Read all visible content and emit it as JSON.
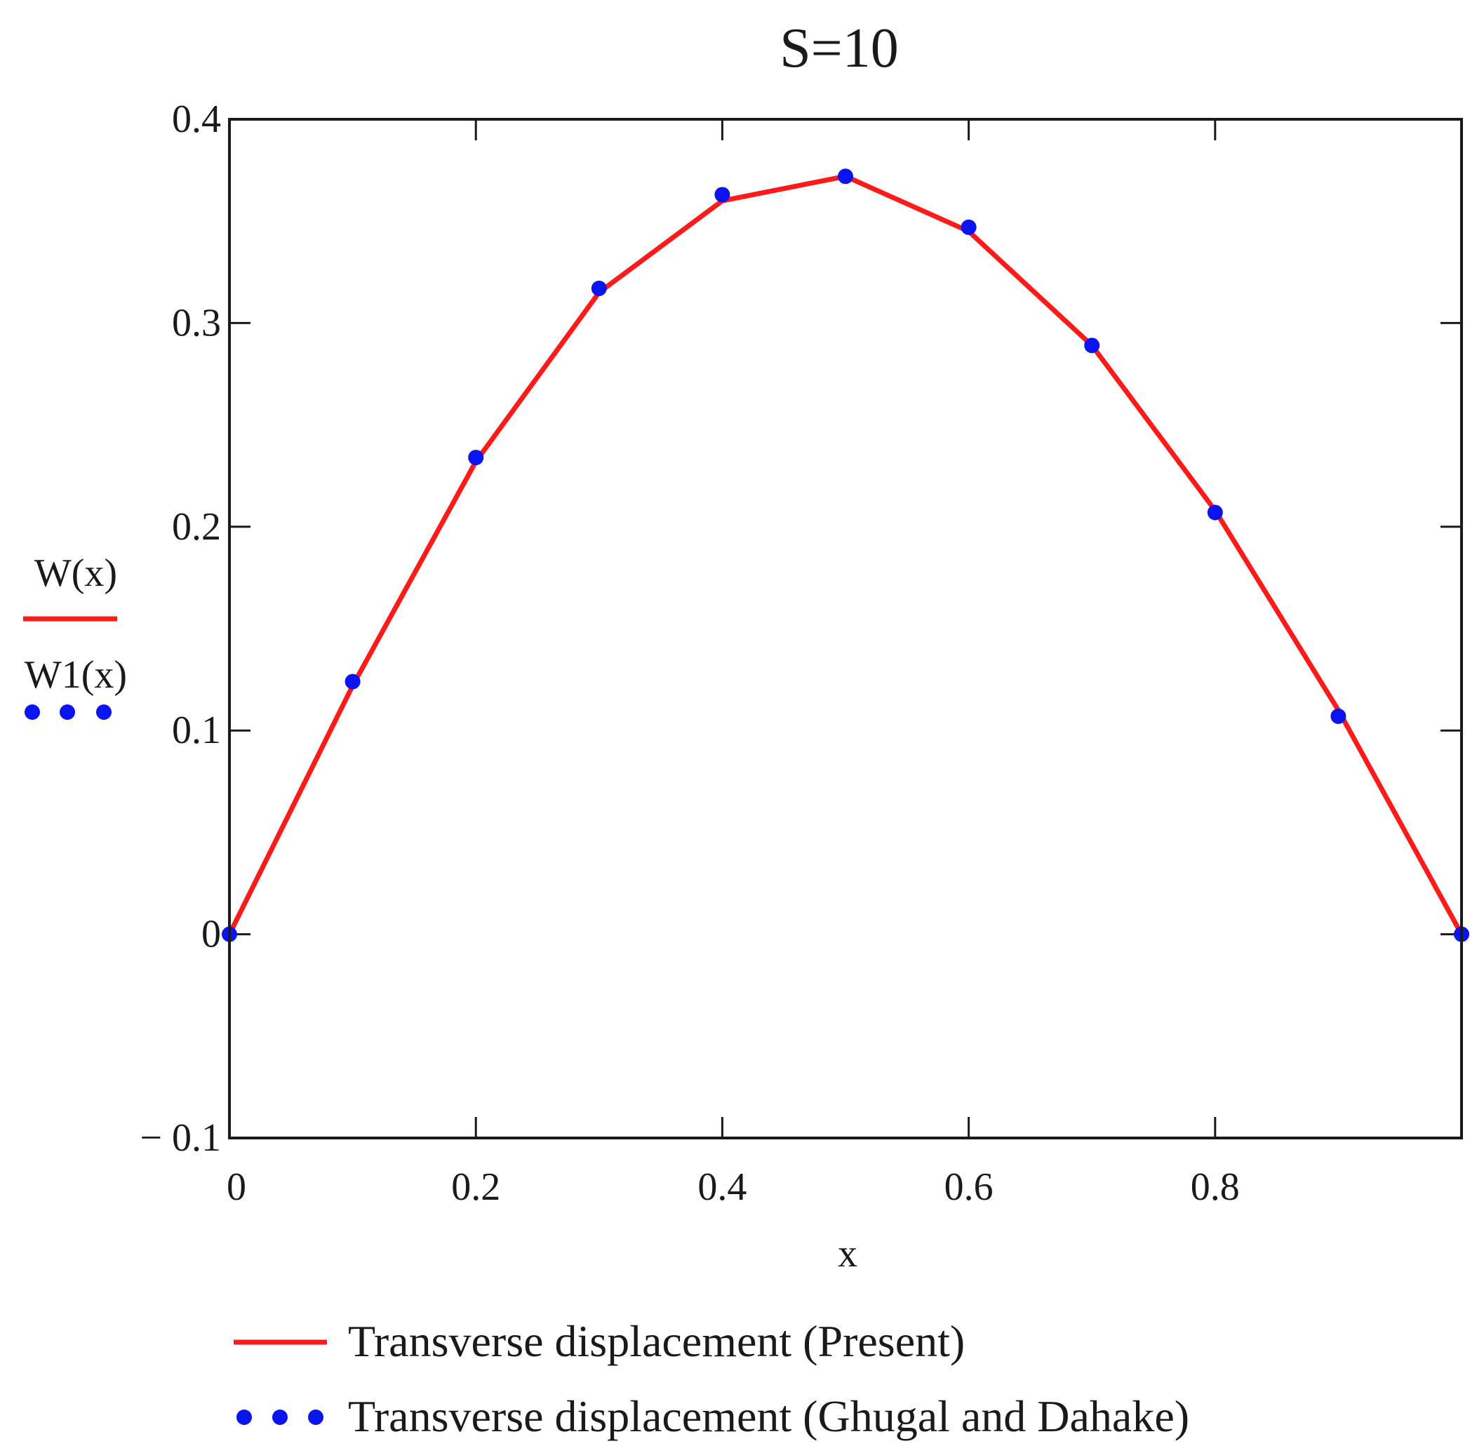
{
  "chart_data": {
    "type": "line",
    "title": "S=10",
    "xlabel": "x",
    "ylabel_lines": [
      "W(x)",
      "W1(x)"
    ],
    "xlim": [
      0,
      1
    ],
    "ylim": [
      -0.1,
      0.4
    ],
    "x_ticks": [
      0,
      0.2,
      0.4,
      0.6,
      0.8
    ],
    "x_tick_labels": [
      "0",
      "0.2",
      "0.4",
      "0.6",
      "0.8"
    ],
    "y_ticks": [
      -0.1,
      0,
      0.1,
      0.2,
      0.3,
      0.4
    ],
    "y_tick_labels": [
      "− 0.1",
      "0",
      "0.1",
      "0.2",
      "0.3",
      "0.4"
    ],
    "grid": false,
    "legend_position": "bottom",
    "series": [
      {
        "name": "Transverse displacement (Present)",
        "axis_label": "W(x)",
        "style": "line",
        "color": "#ff1a1a",
        "x": [
          0,
          0.1,
          0.2,
          0.3,
          0.4,
          0.5,
          0.6,
          0.7,
          0.8,
          0.9,
          1.0
        ],
        "y": [
          0,
          0.122,
          0.232,
          0.315,
          0.36,
          0.372,
          0.345,
          0.289,
          0.208,
          0.11,
          0
        ]
      },
      {
        "name": "Transverse displacement (Ghugal and Dahake)",
        "axis_label": "W1(x)",
        "style": "points",
        "color": "#0a14f0",
        "x": [
          0,
          0.1,
          0.2,
          0.3,
          0.4,
          0.5,
          0.6,
          0.7,
          0.8,
          0.9,
          1.0
        ],
        "y": [
          0,
          0.124,
          0.234,
          0.317,
          0.363,
          0.372,
          0.347,
          0.289,
          0.207,
          0.107,
          0
        ]
      }
    ]
  }
}
